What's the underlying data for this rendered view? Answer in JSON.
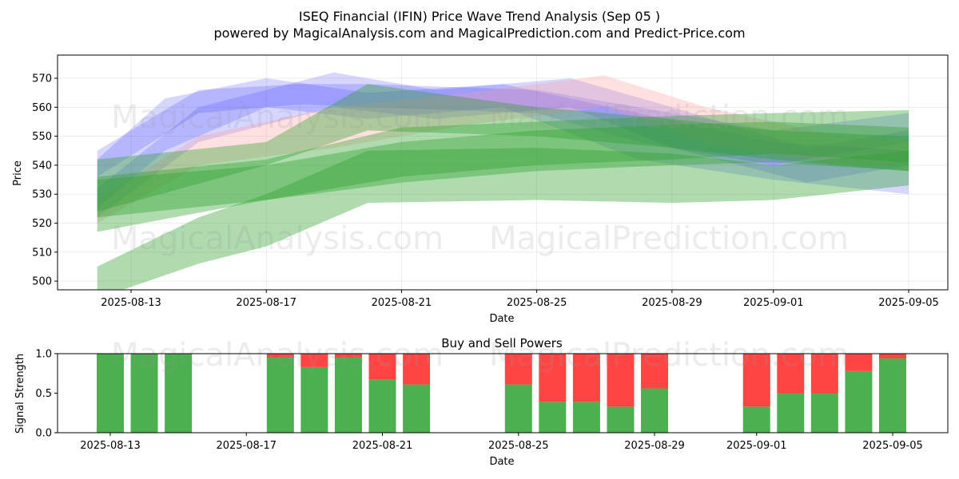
{
  "title_line1": "ISEQ Financial (IFIN) Price Wave Trend Analysis (Sep 05 )",
  "title_line2": "powered by MagicalAnalysis.com and MagicalPrediction.com and Predict-Price.com",
  "watermarks": [
    "MagicalAnalysis.com",
    "MagicalPrediction.com"
  ],
  "colors": {
    "green": "#2ca02c",
    "blue": "#4444ff",
    "pink": "#ff9999",
    "buy": "#4caf50",
    "sell": "#ff4444"
  },
  "chart_data": [
    {
      "type": "area",
      "xlabel": "Date",
      "ylabel": "Price",
      "ylim": [
        497,
        578
      ],
      "yticks": [
        500,
        510,
        520,
        530,
        540,
        550,
        560,
        570
      ],
      "xticks": [
        "2025-08-13",
        "2025-08-17",
        "2025-08-21",
        "2025-08-25",
        "2025-08-29",
        "2025-09-01",
        "2025-09-05"
      ],
      "grid": true,
      "bands": [
        {
          "color": "blue",
          "x": [
            "2025-08-12",
            "2025-08-15",
            "2025-08-18",
            "2025-08-20",
            "2025-08-25",
            "2025-08-28",
            "2025-09-01",
            "2025-09-05"
          ],
          "upper": [
            545,
            566,
            568,
            568,
            566,
            560,
            552,
            558
          ],
          "lower": [
            536,
            558,
            561,
            560,
            558,
            548,
            540,
            548
          ]
        },
        {
          "color": "blue",
          "x": [
            "2025-08-12",
            "2025-08-14",
            "2025-08-17",
            "2025-08-20",
            "2025-08-24",
            "2025-08-28",
            "2025-09-01",
            "2025-09-05"
          ],
          "upper": [
            542,
            563,
            570,
            565,
            568,
            558,
            548,
            545
          ],
          "lower": [
            525,
            545,
            560,
            556,
            560,
            542,
            535,
            530
          ]
        },
        {
          "color": "blue",
          "x": [
            "2025-08-12",
            "2025-08-15",
            "2025-08-19",
            "2025-08-22",
            "2025-08-26",
            "2025-08-29",
            "2025-09-02",
            "2025-09-05"
          ],
          "upper": [
            532,
            560,
            572,
            566,
            570,
            560,
            546,
            552
          ],
          " lower": [
            522,
            548,
            560,
            556,
            560,
            546,
            534,
            540
          ]
        },
        {
          "color": "pink",
          "x": [
            "2025-08-12",
            "2025-08-15",
            "2025-08-19",
            "2025-08-23",
            "2025-08-27",
            "2025-08-30",
            "2025-09-03",
            "2025-09-05"
          ],
          "upper": [
            528,
            550,
            560,
            565,
            571,
            560,
            550,
            548
          ],
          "lower": [
            520,
            540,
            546,
            554,
            560,
            548,
            540,
            540
          ]
        },
        {
          "color": "green",
          "x": [
            "2025-08-12",
            "2025-08-17",
            "2025-08-20",
            "2025-08-25",
            "2025-08-29",
            "2025-09-01",
            "2025-09-05"
          ],
          "upper": [
            542,
            548,
            568,
            560,
            556,
            552,
            550
          ],
          "lower": [
            524,
            540,
            552,
            550,
            546,
            542,
            538
          ]
        },
        {
          "color": "green",
          "x": [
            "2025-08-12",
            "2025-08-17",
            "2025-08-21",
            "2025-08-25",
            "2025-08-29",
            "2025-09-01",
            "2025-09-05"
          ],
          "upper": [
            536,
            542,
            553,
            555,
            557,
            558,
            559
          ],
          "lower": [
            517,
            528,
            536,
            540,
            542,
            544,
            541
          ]
        },
        {
          "color": "green",
          "x": [
            "2025-08-12",
            "2025-08-17",
            "2025-08-21",
            "2025-08-25",
            "2025-08-29",
            "2025-09-01",
            "2025-09-05"
          ],
          "upper": [
            535,
            540,
            548,
            552,
            554,
            555,
            553
          ],
          " lower": [
            522,
            528,
            534,
            538,
            540,
            541,
            538
          ]
        },
        {
          "color": "green",
          "x": [
            "2025-08-12",
            "2025-08-15",
            "2025-08-17",
            "2025-08-20",
            "2025-08-25",
            "2025-08-29",
            "2025-09-01",
            "2025-09-05"
          ],
          "upper": [
            505,
            522,
            530,
            545,
            546,
            544,
            540,
            545
          ],
          "lower": [
            494,
            506,
            512,
            527,
            528,
            527,
            528,
            533
          ]
        }
      ]
    },
    {
      "type": "bar",
      "title": "Buy and Sell Powers",
      "xlabel": "Date",
      "ylabel": "Signal Strength",
      "ylim": [
        0,
        1
      ],
      "yticks": [
        "0.0",
        "0.5",
        "1.0"
      ],
      "xticks": [
        "2025-08-13",
        "2025-08-17",
        "2025-08-21",
        "2025-08-25",
        "2025-08-29",
        "2025-09-01",
        "2025-09-05"
      ],
      "categories": [
        "2025-08-13",
        "2025-08-14",
        "2025-08-15",
        "2025-08-18",
        "2025-08-19",
        "2025-08-20",
        "2025-08-21",
        "2025-08-22",
        "2025-08-25",
        "2025-08-26",
        "2025-08-27",
        "2025-08-28",
        "2025-08-29",
        "2025-09-01",
        "2025-09-02",
        "2025-09-03",
        "2025-09-04",
        "2025-09-05"
      ],
      "series": [
        {
          "name": "buy",
          "values": [
            1.0,
            1.0,
            1.0,
            0.95,
            0.83,
            0.95,
            0.67,
            0.61,
            0.61,
            0.39,
            0.39,
            0.33,
            0.56,
            0.33,
            0.5,
            0.5,
            0.78,
            0.94
          ]
        },
        {
          "name": "sell",
          "values": [
            0.0,
            0.0,
            0.0,
            0.05,
            0.17,
            0.05,
            0.33,
            0.39,
            0.39,
            0.61,
            0.61,
            0.67,
            0.44,
            0.67,
            0.5,
            0.5,
            0.22,
            0.06
          ]
        }
      ]
    }
  ]
}
